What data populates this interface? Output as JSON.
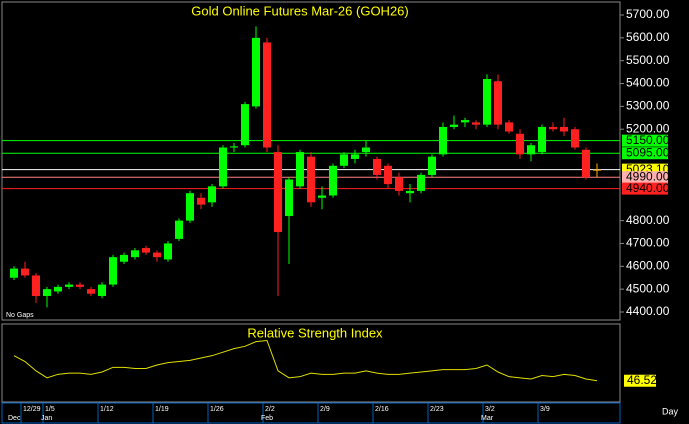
{
  "chart_data": [
    {
      "type": "candlestick",
      "title": "Gold Online Futures Mar-26 (GOH26)",
      "annotation": "No Gaps",
      "xlabel": "Day",
      "categories": [
        null,
        "12/29",
        null,
        "1/5",
        null,
        null,
        null,
        null,
        "1/12",
        null,
        null,
        null,
        null,
        "1/19",
        null,
        null,
        null,
        null,
        "1/26",
        null,
        null,
        null,
        null,
        "2/2",
        null,
        null,
        null,
        null,
        "2/9",
        null,
        null,
        null,
        null,
        "2/16",
        null,
        null,
        null,
        null,
        "2/23",
        null,
        null,
        null,
        null,
        "3/2",
        null,
        null,
        null,
        null,
        "3/9",
        null,
        null,
        null,
        null,
        null
      ],
      "months": [
        "Dec",
        null,
        null,
        "Jan",
        null,
        null,
        null,
        null,
        null,
        null,
        null,
        null,
        null,
        null,
        null,
        null,
        null,
        null,
        null,
        null,
        null,
        null,
        null,
        "Feb",
        null,
        null,
        null,
        null,
        null,
        null,
        null,
        null,
        null,
        null,
        null,
        null,
        null,
        null,
        null,
        null,
        null,
        null,
        null,
        "Mar",
        null,
        null,
        null,
        null,
        null,
        null,
        null,
        null,
        null,
        null
      ],
      "open": [
        4550,
        4590,
        4560,
        4470,
        4490,
        4510,
        4520,
        4500,
        4470,
        4520,
        4620,
        4640,
        4680,
        4660,
        4630,
        4720,
        4800,
        4900,
        4880,
        4950,
        5120,
        5130,
        5300,
        5580,
        5100,
        4820,
        4950,
        5080,
        4900,
        4910,
        5040,
        5070,
        5100,
        5070,
        5040,
        4990,
        4920,
        4930,
        5000,
        5090,
        5210,
        5230,
        5230,
        5220,
        5410,
        5230,
        5180,
        5090,
        5100,
        5210,
        5210,
        5200,
        5110,
        5023.1
      ],
      "high": [
        4600,
        4620,
        4570,
        4510,
        4520,
        4530,
        4530,
        4510,
        4530,
        4650,
        4660,
        4680,
        4690,
        4670,
        4710,
        4810,
        4930,
        4920,
        4960,
        5130,
        5140,
        5320,
        5650,
        5600,
        5130,
        4990,
        5110,
        5100,
        4950,
        5050,
        5100,
        5110,
        5150,
        5080,
        5050,
        5010,
        4960,
        5010,
        5090,
        5230,
        5260,
        5250,
        5240,
        5440,
        5440,
        5240,
        5200,
        5140,
        5220,
        5230,
        5250,
        5210,
        5120,
        5050
      ],
      "low": [
        4540,
        4550,
        4440,
        4420,
        4480,
        4500,
        4500,
        4470,
        4460,
        4510,
        4610,
        4630,
        4650,
        4620,
        4620,
        4710,
        4790,
        4850,
        4860,
        4940,
        5100,
        5120,
        5290,
        5100,
        4470,
        4610,
        4940,
        4860,
        4850,
        4900,
        5030,
        5050,
        5080,
        4980,
        4940,
        4910,
        4880,
        4920,
        4990,
        5080,
        5200,
        5210,
        5200,
        5210,
        5200,
        5180,
        5070,
        5060,
        5090,
        5190,
        5170,
        5110,
        4980,
        4990
      ],
      "close": [
        4590,
        4560,
        4470,
        4500,
        4510,
        4520,
        4510,
        4480,
        4520,
        4640,
        4650,
        4670,
        4660,
        4640,
        4700,
        4800,
        4920,
        4870,
        4950,
        5120,
        5125,
        5310,
        5600,
        5120,
        4750,
        4980,
        5100,
        4880,
        4910,
        5040,
        5090,
        5090,
        5120,
        5000,
        4960,
        4930,
        4930,
        5000,
        5080,
        5210,
        5220,
        5240,
        5220,
        5420,
        5220,
        5190,
        5090,
        5130,
        5210,
        5200,
        5190,
        5120,
        4990,
        5023.1
      ],
      "up_color": "#00ff00",
      "down_color": "#ff2020",
      "last_color": "#ffb000",
      "ylim": [
        4380,
        5760
      ],
      "yticks": [
        {
          "value": 4400,
          "label": "4400.00"
        },
        {
          "value": 4500,
          "label": "4500.00"
        },
        {
          "value": 4600,
          "label": "4600.00"
        },
        {
          "value": 4700,
          "label": "4700.00"
        },
        {
          "value": 4800,
          "label": "4800.00"
        },
        {
          "value": 5200,
          "label": "5200.00"
        },
        {
          "value": 5300,
          "label": "5300.00"
        },
        {
          "value": 5400,
          "label": "5400.00"
        },
        {
          "value": 5500,
          "label": "5500.00"
        },
        {
          "value": 5600,
          "label": "5600.00"
        },
        {
          "value": 5700,
          "label": "5700.00"
        }
      ],
      "levels": [
        {
          "value": 5150,
          "label": "5150.00",
          "color": "#00ff00",
          "label_bg": "#00ff00"
        },
        {
          "value": 5095,
          "label": "5095.00",
          "color": "#00ff00",
          "label_bg": "#00ff00"
        },
        {
          "value": 5023.1,
          "label": "5023.10",
          "color": "#ffffff",
          "label_bg": "#ffff00"
        },
        {
          "value": 4990,
          "label": "4990.00",
          "color": "#ff8080",
          "label_bg": "#ffb0b0"
        },
        {
          "value": 4940,
          "label": "4940.00",
          "color": "#ff2020",
          "label_bg": "#ff2020"
        }
      ]
    },
    {
      "type": "line",
      "title": "Relative Strength Index",
      "color": "#e0e000",
      "ylim": [
        30,
        90
      ],
      "values": [
        68,
        63,
        55,
        49,
        52,
        53,
        53,
        52,
        54,
        58,
        58,
        57,
        57,
        60,
        62,
        63,
        64,
        66,
        68,
        71,
        74,
        76,
        80,
        81,
        55,
        49,
        50,
        53,
        52,
        52,
        53,
        53,
        55,
        53,
        52,
        52,
        53,
        54,
        55,
        56,
        56,
        56,
        57,
        60,
        54,
        50,
        49,
        48,
        51,
        50,
        52,
        51,
        48,
        46.52
      ]
    }
  ]
}
